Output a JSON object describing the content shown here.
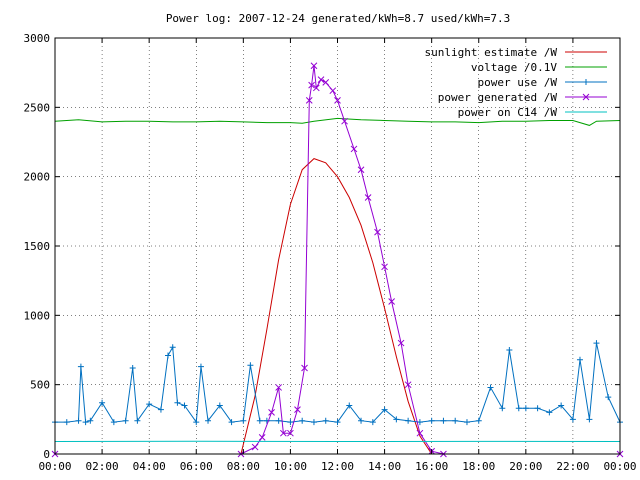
{
  "chart_data": {
    "type": "line",
    "title": "Power log: 2007-12-24 generated/kWh=8.7 used/kWh=7.3",
    "xlabel": "",
    "ylabel": "",
    "xlim": [
      0,
      24
    ],
    "ylim": [
      0,
      3000
    ],
    "grid": true,
    "legend_position": "top-right",
    "x_ticks": [
      "00:00",
      "02:00",
      "04:00",
      "06:00",
      "08:00",
      "10:00",
      "12:00",
      "14:00",
      "16:00",
      "18:00",
      "20:00",
      "22:00",
      "00:00"
    ],
    "y_ticks": [
      "0",
      "500",
      "1000",
      "1500",
      "2000",
      "2500",
      "3000"
    ],
    "series": [
      {
        "name": "sunlight estimate /W",
        "color": "#cc0000",
        "marker": "none",
        "x": [
          0,
          7.9,
          8.5,
          9,
          9.5,
          10,
          10.5,
          11,
          11.5,
          12,
          12.5,
          13,
          13.5,
          14,
          14.5,
          15,
          15.5,
          16,
          24
        ],
        "values": [
          0,
          0,
          420,
          900,
          1400,
          1800,
          2050,
          2130,
          2100,
          2000,
          1850,
          1650,
          1380,
          1050,
          700,
          380,
          130,
          0,
          0
        ]
      },
      {
        "name": "voltage /0.1V",
        "color": "#00a000",
        "marker": "none",
        "x": [
          0,
          1,
          2,
          3,
          4,
          5,
          6,
          7,
          8,
          9,
          10,
          10.5,
          11,
          12,
          13,
          14,
          15,
          16,
          17,
          18,
          19,
          20,
          21,
          22,
          22.7,
          23,
          24
        ],
        "values": [
          2400,
          2410,
          2395,
          2400,
          2400,
          2395,
          2395,
          2400,
          2395,
          2390,
          2390,
          2385,
          2400,
          2420,
          2410,
          2405,
          2400,
          2395,
          2395,
          2390,
          2400,
          2400,
          2405,
          2405,
          2370,
          2400,
          2405
        ]
      },
      {
        "name": "power use /W",
        "color": "#0070c0",
        "marker": "plus",
        "x": [
          0,
          0.5,
          1,
          1.1,
          1.3,
          1.5,
          2,
          2.5,
          3,
          3.3,
          3.5,
          4,
          4.5,
          4.8,
          5,
          5.2,
          5.5,
          6,
          6.2,
          6.5,
          7,
          7.5,
          8,
          8.3,
          8.7,
          9,
          9.5,
          10,
          10.5,
          11,
          11.5,
          12,
          12.5,
          13,
          13.5,
          14,
          14.5,
          15,
          15.5,
          16,
          16.5,
          17,
          17.5,
          18,
          18.5,
          19,
          19.3,
          19.7,
          20,
          20.5,
          21,
          21.5,
          22,
          22.3,
          22.7,
          23,
          23.5,
          24
        ],
        "values": [
          230,
          230,
          240,
          630,
          230,
          240,
          370,
          230,
          240,
          620,
          240,
          360,
          320,
          710,
          770,
          370,
          350,
          230,
          630,
          240,
          350,
          230,
          240,
          640,
          240,
          240,
          240,
          230,
          240,
          230,
          240,
          230,
          350,
          240,
          230,
          320,
          250,
          240,
          230,
          240,
          240,
          240,
          230,
          240,
          480,
          330,
          750,
          330,
          330,
          330,
          300,
          350,
          250,
          680,
          250,
          800,
          410,
          230
        ]
      },
      {
        "name": "power generated /W",
        "color": "#9400d3",
        "marker": "cross",
        "x": [
          0,
          7.9,
          8.5,
          8.8,
          9.2,
          9.5,
          9.7,
          10,
          10.3,
          10.6,
          10.8,
          10.9,
          11,
          11.1,
          11.3,
          11.5,
          11.8,
          12,
          12.3,
          12.7,
          13,
          13.3,
          13.7,
          14,
          14.3,
          14.7,
          15,
          15.5,
          16,
          16.5,
          24
        ],
        "values": [
          0,
          0,
          50,
          120,
          300,
          480,
          150,
          150,
          320,
          620,
          2550,
          2660,
          2800,
          2640,
          2700,
          2680,
          2620,
          2550,
          2400,
          2200,
          2050,
          1850,
          1600,
          1350,
          1100,
          800,
          500,
          150,
          20,
          0,
          0
        ]
      },
      {
        "name": "power on C14 /W",
        "color": "#00c0c0",
        "marker": "none",
        "x": [
          0,
          6,
          12,
          18,
          24
        ],
        "values": [
          90,
          92,
          90,
          91,
          90
        ]
      }
    ]
  }
}
